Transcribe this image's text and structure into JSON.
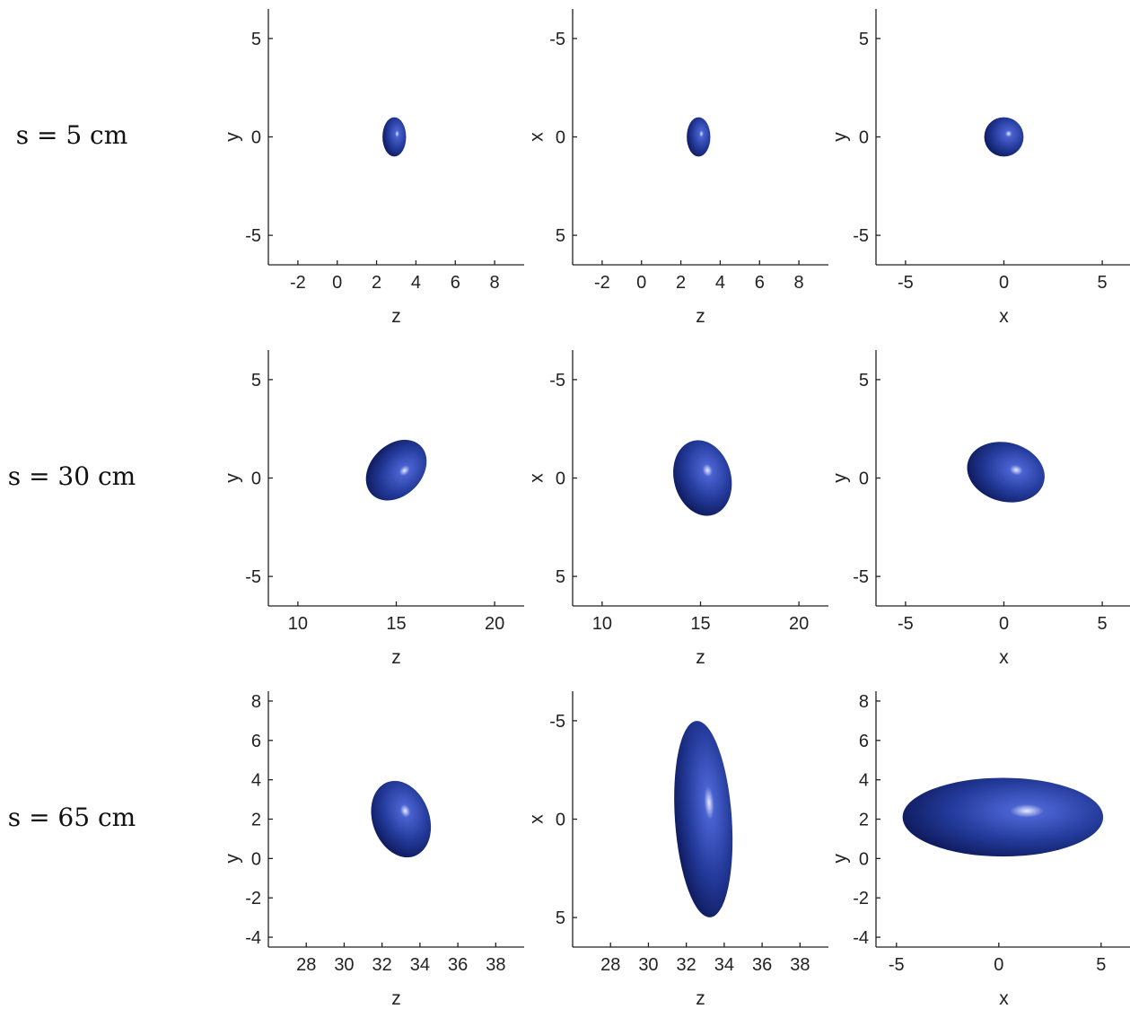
{
  "row_labels": [
    "s = 5 cm",
    "s = 30 cm",
    "s = 65 cm"
  ],
  "colors": {
    "surface": "#233a9a",
    "surface_dark": "#0b1450",
    "highlight": "#e8ecff",
    "axis": "#222222"
  },
  "chart_data": [
    {
      "type": "scatter",
      "id": "r1c1",
      "xlabel": "z",
      "ylabel": "y",
      "xlim": [
        -3.5,
        9.5
      ],
      "ylim": [
        -6.5,
        6.5
      ],
      "y_reversed": false,
      "xticks": [
        -2,
        0,
        2,
        4,
        6,
        8
      ],
      "xticklabels": [
        "-2",
        "0",
        "2",
        "4",
        "6",
        "8"
      ],
      "yticks": [
        -5,
        0,
        5
      ],
      "yticklabels": [
        "-5",
        "0",
        "5"
      ],
      "ellipse": {
        "cx": 2.9,
        "cy": 0.0,
        "rx": 0.6,
        "ry": 1.0,
        "angle": 0
      }
    },
    {
      "type": "scatter",
      "id": "r1c2",
      "xlabel": "z",
      "ylabel": "x",
      "xlim": [
        -3.5,
        9.5
      ],
      "ylim": [
        -6.5,
        6.5
      ],
      "y_reversed": true,
      "xticks": [
        -2,
        0,
        2,
        4,
        6,
        8
      ],
      "xticklabels": [
        "-2",
        "0",
        "2",
        "4",
        "6",
        "8"
      ],
      "yticks": [
        -5,
        0,
        5
      ],
      "yticklabels": [
        "-5",
        "0",
        "5"
      ],
      "ellipse": {
        "cx": 2.9,
        "cy": 0.0,
        "rx": 0.6,
        "ry": 1.0,
        "angle": 0
      }
    },
    {
      "type": "scatter",
      "id": "r1c3",
      "xlabel": "x",
      "ylabel": "y",
      "xlim": [
        -6.5,
        6.5
      ],
      "ylim": [
        -6.5,
        6.5
      ],
      "y_reversed": false,
      "xticks": [
        -5,
        0,
        5
      ],
      "xticklabels": [
        "-5",
        "0",
        "5"
      ],
      "yticks": [
        -5,
        0,
        5
      ],
      "yticklabels": [
        "-5",
        "0",
        "5"
      ],
      "ellipse": {
        "cx": 0.0,
        "cy": 0.0,
        "rx": 1.0,
        "ry": 1.0,
        "angle": 0
      }
    },
    {
      "type": "scatter",
      "id": "r2c1",
      "xlabel": "z",
      "ylabel": "y",
      "xlim": [
        8.5,
        21.5
      ],
      "ylim": [
        -6.5,
        6.5
      ],
      "y_reversed": false,
      "xticks": [
        10,
        15,
        20
      ],
      "xticklabels": [
        "10",
        "15",
        "20"
      ],
      "yticks": [
        -5,
        0,
        5
      ],
      "yticklabels": [
        "-5",
        "0",
        "5"
      ],
      "ellipse": {
        "cx": 15.0,
        "cy": 0.4,
        "rx": 1.3,
        "ry": 1.75,
        "angle": 45
      }
    },
    {
      "type": "scatter",
      "id": "r2c2",
      "xlabel": "z",
      "ylabel": "x",
      "xlim": [
        8.5,
        21.5
      ],
      "ylim": [
        -6.5,
        6.5
      ],
      "y_reversed": true,
      "xticks": [
        10,
        15,
        20
      ],
      "xticklabels": [
        "10",
        "15",
        "20"
      ],
      "yticks": [
        -5,
        0,
        5
      ],
      "yticklabels": [
        "-5",
        "0",
        "5"
      ],
      "ellipse": {
        "cx": 15.1,
        "cy": 0.0,
        "rx": 1.45,
        "ry": 1.95,
        "angle": -15
      }
    },
    {
      "type": "scatter",
      "id": "r2c3",
      "xlabel": "x",
      "ylabel": "y",
      "xlim": [
        -6.5,
        6.5
      ],
      "ylim": [
        -6.5,
        6.5
      ],
      "y_reversed": false,
      "xticks": [
        -5,
        0,
        5
      ],
      "xticklabels": [
        "-5",
        "0",
        "5"
      ],
      "yticks": [
        -5,
        0,
        5
      ],
      "yticklabels": [
        "-5",
        "0",
        "5"
      ],
      "ellipse": {
        "cx": 0.1,
        "cy": 0.3,
        "rx": 2.0,
        "ry": 1.5,
        "angle": 15
      }
    },
    {
      "type": "scatter",
      "id": "r3c1",
      "xlabel": "z",
      "ylabel": "y",
      "xlim": [
        26.0,
        39.5
      ],
      "ylim": [
        -4.5,
        8.5
      ],
      "y_reversed": false,
      "xticks": [
        28,
        30,
        32,
        34,
        36,
        38
      ],
      "xticklabels": [
        "28",
        "30",
        "32",
        "34",
        "36",
        "38"
      ],
      "yticks": [
        -4,
        -2,
        0,
        2,
        4,
        6,
        8
      ],
      "yticklabels": [
        "-4",
        "-2",
        "0",
        "2",
        "4",
        "6",
        "8"
      ],
      "ellipse": {
        "cx": 33.0,
        "cy": 2.0,
        "rx": 1.5,
        "ry": 2.0,
        "angle": -20
      }
    },
    {
      "type": "scatter",
      "id": "r3c2",
      "xlabel": "z",
      "ylabel": "x",
      "xlim": [
        26.0,
        39.5
      ],
      "ylim": [
        -6.5,
        6.5
      ],
      "y_reversed": true,
      "xticks": [
        28,
        30,
        32,
        34,
        36,
        38
      ],
      "xticklabels": [
        "28",
        "30",
        "32",
        "34",
        "36",
        "38"
      ],
      "yticks": [
        -5,
        0,
        5
      ],
      "yticklabels": [
        "-5",
        "0",
        "5"
      ],
      "ellipse": {
        "cx": 32.9,
        "cy": 0.0,
        "rx": 1.5,
        "ry": 5.0,
        "angle": -4
      }
    },
    {
      "type": "scatter",
      "id": "r3c3",
      "xlabel": "x",
      "ylabel": "y",
      "xlim": [
        -6.0,
        6.5
      ],
      "ylim": [
        -4.5,
        8.5
      ],
      "y_reversed": false,
      "xticks": [
        -5,
        0,
        5
      ],
      "xticklabels": [
        "-5",
        "0",
        "5"
      ],
      "yticks": [
        -4,
        -2,
        0,
        2,
        4,
        6,
        8
      ],
      "yticklabels": [
        "-4",
        "-2",
        "0",
        "2",
        "4",
        "6",
        "8"
      ],
      "ellipse": {
        "cx": 0.2,
        "cy": 2.1,
        "rx": 4.9,
        "ry": 2.0,
        "angle": 0
      }
    }
  ]
}
